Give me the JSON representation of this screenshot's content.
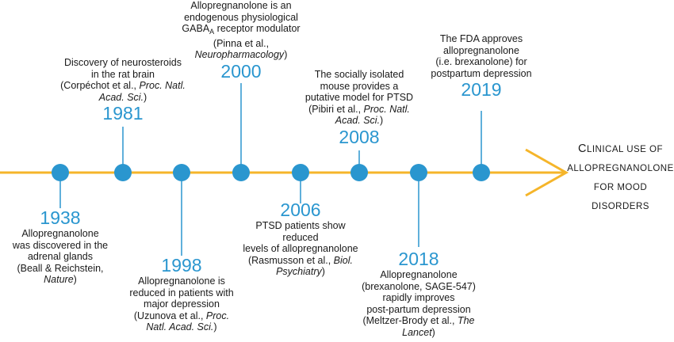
{
  "colors": {
    "accent": "#2a96cf",
    "arrow": "#f5b52a",
    "text": "#1a1a1a"
  },
  "events": [
    {
      "id": "e1938",
      "year": "1938",
      "position": "below",
      "lines": [
        [
          "Allopregnanolone"
        ],
        [
          "was discovered in the"
        ],
        [
          "adrenal glands"
        ],
        [
          "(Beall & Reichstein,"
        ],
        [
          {
            "i": "Nature"
          },
          ")"
        ]
      ]
    },
    {
      "id": "e1981",
      "year": "1981",
      "position": "above",
      "lines": [
        [
          "Discovery of neurosteroids"
        ],
        [
          "in the rat brain"
        ],
        [
          "(Corpéchot et al., ",
          {
            "i": "Proc. Natl."
          }
        ],
        [
          {
            "i": "Acad. Sci."
          },
          ")"
        ]
      ]
    },
    {
      "id": "e1998",
      "year": "1998",
      "position": "below",
      "lines": [
        [
          "Allopregnanolone is"
        ],
        [
          "reduced in patients with"
        ],
        [
          "major depression"
        ],
        [
          "(Uzunova et al., ",
          {
            "i": "Proc."
          }
        ],
        [
          {
            "i": "Natl. Acad. Sci."
          },
          ")"
        ]
      ]
    },
    {
      "id": "e2000",
      "year": "2000",
      "position": "above",
      "lines": [
        [
          "Allopregnanolone is an"
        ],
        [
          "endogenous physiological"
        ],
        [
          "GABA",
          {
            "sub": "A"
          },
          " receptor modulator"
        ],
        [
          "(Pinna et al.,"
        ],
        [
          {
            "i": "Neuropharmacology"
          },
          ")"
        ]
      ]
    },
    {
      "id": "e2006",
      "year": "2006",
      "position": "below",
      "lines": [
        [
          "PTSD patients show"
        ],
        [
          "reduced"
        ],
        [
          "levels of allopregnanolone"
        ],
        [
          "(Rasmusson et al., ",
          {
            "i": "Biol."
          }
        ],
        [
          {
            "i": "Psychiatry"
          },
          ")"
        ]
      ]
    },
    {
      "id": "e2008",
      "year": "2008",
      "position": "above",
      "lines": [
        [
          "The socially isolated"
        ],
        [
          "mouse provides a"
        ],
        [
          "putative model for PTSD"
        ],
        [
          "(Pibiri et al., ",
          {
            "i": "Proc. Natl."
          }
        ],
        [
          {
            "i": "Acad. Sci."
          },
          ")"
        ]
      ]
    },
    {
      "id": "e2018",
      "year": "2018",
      "position": "below",
      "lines": [
        [
          "Allopregnanolone"
        ],
        [
          "(brexanolone, SAGE-547)"
        ],
        [
          "rapidly improves"
        ],
        [
          "post-partum depression"
        ],
        [
          "(Meltzer-Brody et al., ",
          {
            "i": "The"
          }
        ],
        [
          {
            "i": "Lancet"
          },
          ")"
        ]
      ]
    },
    {
      "id": "e2019",
      "year": "2019",
      "position": "above",
      "lines": [
        [
          "The FDA approves"
        ],
        [
          "allopregnanolone"
        ],
        [
          "(i.e. brexanolone) for"
        ],
        [
          "postpartum depression"
        ]
      ]
    }
  ],
  "conclusion": {
    "first_cap": "C",
    "line1_rest": "LINICAL USE OF",
    "line2": "ALLOPREGNANOLONE",
    "line3": "FOR MOOD",
    "line4": "DISORDERS"
  }
}
